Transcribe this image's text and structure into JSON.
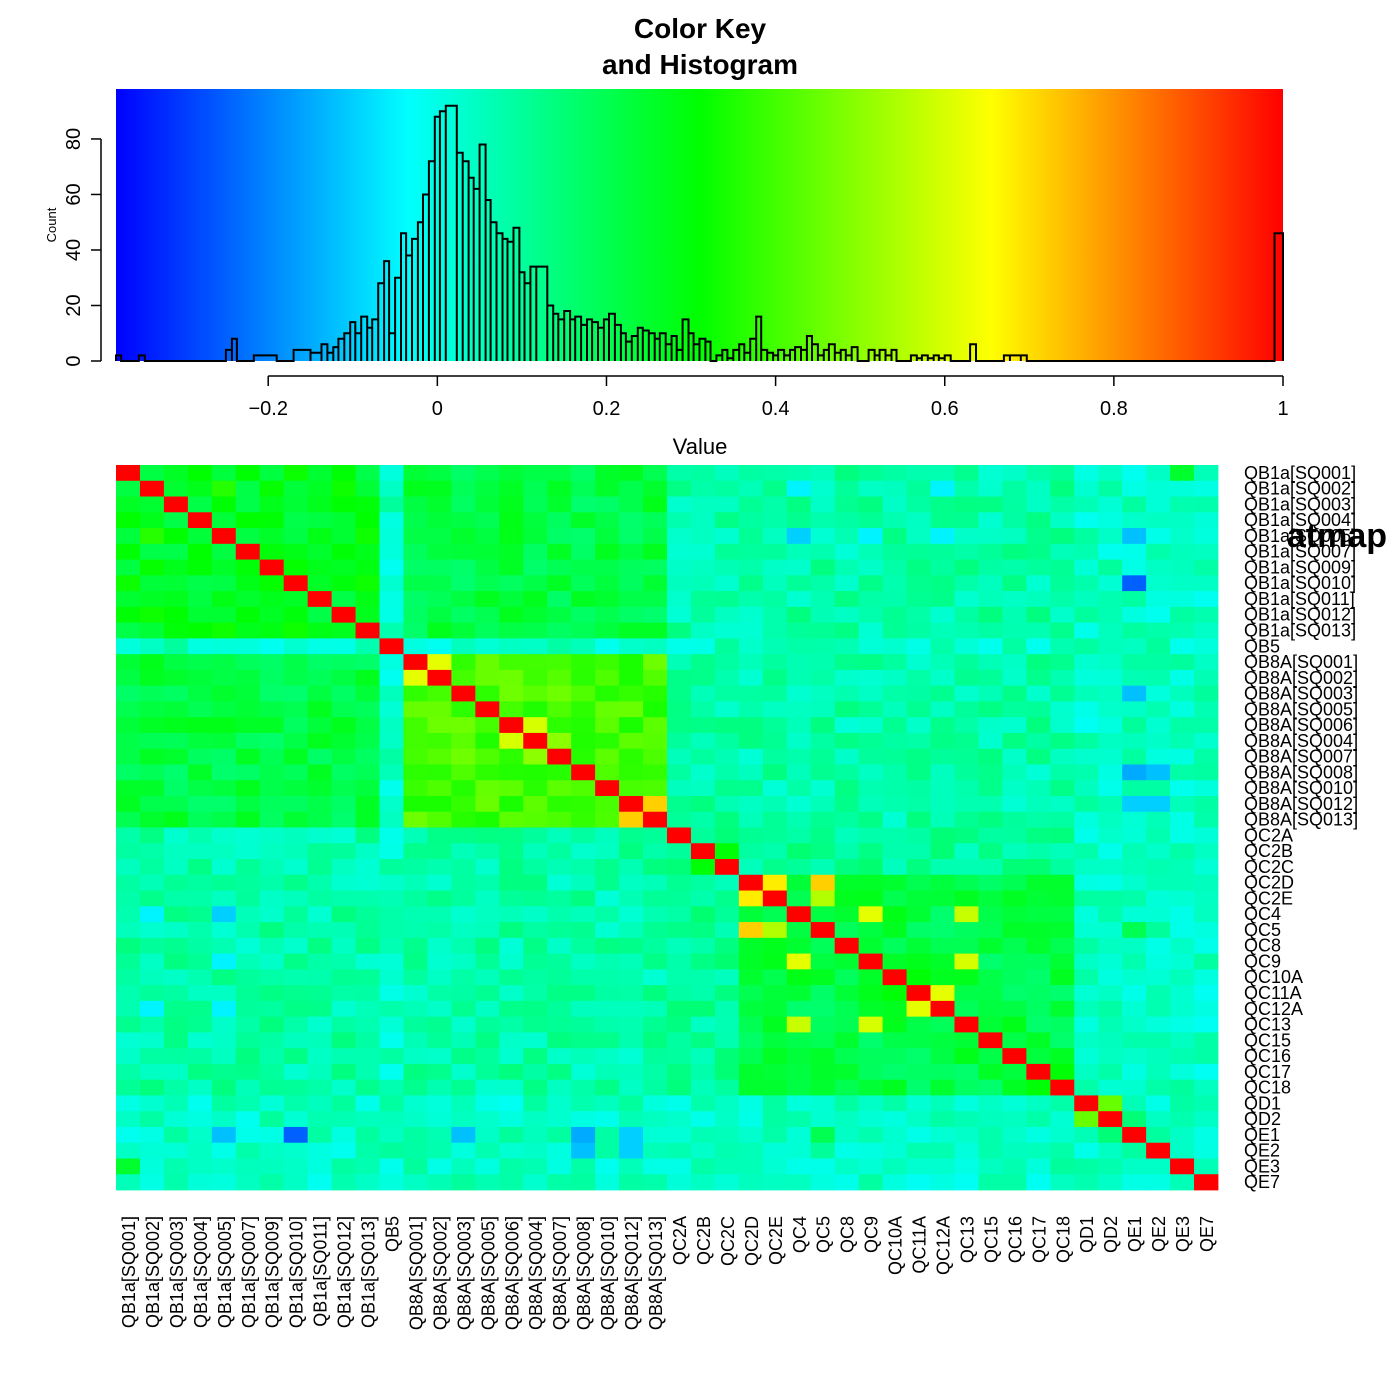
{
  "chart_data": [
    {
      "type": "histogram",
      "title_line1": "Color Key",
      "title_line2": "and Histogram",
      "xlabel": "Value",
      "ylabel": "Count",
      "xlim": [
        -0.38,
        1.0
      ],
      "ylim": [
        0,
        98
      ],
      "x_ticks": [
        -0.2,
        0,
        0.2,
        0.4,
        0.6,
        0.8,
        1
      ],
      "x_tick_labels": [
        "−0.2",
        "0",
        "0.2",
        "0.4",
        "0.6",
        "0.8",
        "1"
      ],
      "y_ticks": [
        0,
        20,
        40,
        60,
        80
      ],
      "y_tick_labels": [
        "0",
        "20",
        "40",
        "60",
        "80"
      ],
      "color_key_stops": [
        "#0000ff",
        "#00ffff",
        "#00ff00",
        "#ffff00",
        "#ff0000"
      ],
      "bins": [
        [
          -0.38,
          -0.374,
          2
        ],
        [
          -0.353,
          -0.346,
          2
        ],
        [
          -0.25,
          -0.243,
          4
        ],
        [
          -0.243,
          -0.237,
          8
        ],
        [
          -0.217,
          -0.19,
          2
        ],
        [
          -0.17,
          -0.15,
          4
        ],
        [
          -0.15,
          -0.137,
          3
        ],
        [
          -0.137,
          -0.13,
          6
        ],
        [
          -0.13,
          -0.123,
          3
        ],
        [
          -0.123,
          -0.117,
          5
        ],
        [
          -0.117,
          -0.11,
          8
        ],
        [
          -0.11,
          -0.103,
          10
        ],
        [
          -0.103,
          -0.097,
          14
        ],
        [
          -0.097,
          -0.09,
          10
        ],
        [
          -0.09,
          -0.083,
          16
        ],
        [
          -0.083,
          -0.077,
          12
        ],
        [
          -0.077,
          -0.07,
          15
        ],
        [
          -0.07,
          -0.063,
          28
        ],
        [
          -0.063,
          -0.057,
          36
        ],
        [
          -0.057,
          -0.05,
          10
        ],
        [
          -0.05,
          -0.043,
          30
        ],
        [
          -0.043,
          -0.037,
          46
        ],
        [
          -0.037,
          -0.03,
          38
        ],
        [
          -0.03,
          -0.023,
          44
        ],
        [
          -0.023,
          -0.017,
          50
        ],
        [
          -0.017,
          -0.01,
          60
        ],
        [
          -0.01,
          -0.003,
          72
        ],
        [
          -0.003,
          0.003,
          88
        ],
        [
          0.003,
          0.01,
          90
        ],
        [
          0.01,
          0.023,
          92
        ],
        [
          0.023,
          0.03,
          75
        ],
        [
          0.03,
          0.037,
          72
        ],
        [
          0.037,
          0.043,
          66
        ],
        [
          0.043,
          0.05,
          62
        ],
        [
          0.05,
          0.057,
          78
        ],
        [
          0.057,
          0.063,
          58
        ],
        [
          0.063,
          0.07,
          50
        ],
        [
          0.07,
          0.077,
          46
        ],
        [
          0.077,
          0.083,
          44
        ],
        [
          0.083,
          0.09,
          43
        ],
        [
          0.09,
          0.097,
          48
        ],
        [
          0.097,
          0.103,
          32
        ],
        [
          0.103,
          0.11,
          28
        ],
        [
          0.11,
          0.117,
          34
        ],
        [
          0.117,
          0.13,
          34
        ],
        [
          0.13,
          0.137,
          20
        ],
        [
          0.137,
          0.143,
          17
        ],
        [
          0.143,
          0.15,
          15
        ],
        [
          0.15,
          0.157,
          18
        ],
        [
          0.157,
          0.163,
          15
        ],
        [
          0.163,
          0.17,
          16
        ],
        [
          0.17,
          0.177,
          13
        ],
        [
          0.177,
          0.183,
          15
        ],
        [
          0.183,
          0.19,
          14
        ],
        [
          0.19,
          0.197,
          12
        ],
        [
          0.197,
          0.203,
          15
        ],
        [
          0.203,
          0.21,
          17
        ],
        [
          0.21,
          0.217,
          13
        ],
        [
          0.217,
          0.223,
          10
        ],
        [
          0.223,
          0.23,
          7
        ],
        [
          0.23,
          0.237,
          9
        ],
        [
          0.237,
          0.243,
          12
        ],
        [
          0.243,
          0.25,
          11
        ],
        [
          0.25,
          0.257,
          10
        ],
        [
          0.257,
          0.263,
          8
        ],
        [
          0.263,
          0.27,
          10
        ],
        [
          0.27,
          0.277,
          6
        ],
        [
          0.277,
          0.283,
          9
        ],
        [
          0.283,
          0.29,
          4
        ],
        [
          0.29,
          0.297,
          15
        ],
        [
          0.297,
          0.303,
          10
        ],
        [
          0.303,
          0.31,
          6
        ],
        [
          0.31,
          0.317,
          8
        ],
        [
          0.317,
          0.323,
          7
        ],
        [
          0.323,
          0.33,
          0
        ],
        [
          0.33,
          0.337,
          2
        ],
        [
          0.337,
          0.343,
          4
        ],
        [
          0.343,
          0.35,
          1
        ],
        [
          0.35,
          0.357,
          4
        ],
        [
          0.357,
          0.363,
          6
        ],
        [
          0.363,
          0.37,
          3
        ],
        [
          0.37,
          0.377,
          8
        ],
        [
          0.377,
          0.383,
          16
        ],
        [
          0.383,
          0.39,
          4
        ],
        [
          0.39,
          0.397,
          3
        ],
        [
          0.397,
          0.403,
          2
        ],
        [
          0.403,
          0.41,
          4
        ],
        [
          0.41,
          0.417,
          2
        ],
        [
          0.417,
          0.423,
          4
        ],
        [
          0.423,
          0.43,
          5
        ],
        [
          0.43,
          0.437,
          4
        ],
        [
          0.437,
          0.443,
          9
        ],
        [
          0.443,
          0.45,
          6
        ],
        [
          0.45,
          0.457,
          2
        ],
        [
          0.457,
          0.463,
          4
        ],
        [
          0.463,
          0.47,
          6
        ],
        [
          0.47,
          0.477,
          3
        ],
        [
          0.477,
          0.483,
          4
        ],
        [
          0.483,
          0.49,
          2
        ],
        [
          0.49,
          0.497,
          5
        ],
        [
          0.497,
          0.51,
          0
        ],
        [
          0.51,
          0.517,
          4
        ],
        [
          0.517,
          0.523,
          2
        ],
        [
          0.523,
          0.53,
          4
        ],
        [
          0.53,
          0.537,
          2
        ],
        [
          0.537,
          0.543,
          4
        ],
        [
          0.543,
          0.56,
          0
        ],
        [
          0.56,
          0.567,
          2
        ],
        [
          0.567,
          0.573,
          1
        ],
        [
          0.573,
          0.58,
          2
        ],
        [
          0.58,
          0.587,
          1
        ],
        [
          0.587,
          0.593,
          2
        ],
        [
          0.593,
          0.6,
          1
        ],
        [
          0.6,
          0.607,
          2
        ],
        [
          0.607,
          0.63,
          0
        ],
        [
          0.63,
          0.637,
          6
        ],
        [
          0.637,
          0.67,
          0
        ],
        [
          0.67,
          0.677,
          2
        ],
        [
          0.677,
          0.69,
          2
        ],
        [
          0.69,
          0.697,
          2
        ],
        [
          0.99,
          1.0,
          46
        ]
      ]
    },
    {
      "type": "heatmap",
      "title": "",
      "overlapping_fragment": "atmap",
      "xlabel": "",
      "ylabel": "",
      "labels": [
        "QB1a[SQ001]",
        "QB1a[SQ002]",
        "QB1a[SQ003]",
        "QB1a[SQ004]",
        "QB1a[SQ005]",
        "QB1a[SQ007]",
        "QB1a[SQ009]",
        "QB1a[SQ010]",
        "QB1a[SQ011]",
        "QB1a[SQ012]",
        "QB1a[SQ013]",
        "QB5",
        "QB8A[SQ001]",
        "QB8A[SQ002]",
        "QB8A[SQ003]",
        "QB8A[SQ005]",
        "QB8A[SQ006]",
        "QB8A[SQ004]",
        "QB8A[SQ007]",
        "QB8A[SQ008]",
        "QB8A[SQ010]",
        "QB8A[SQ012]",
        "QB8A[SQ013]",
        "QC2A",
        "QC2B",
        "QC2C",
        "QC2D",
        "QC2E",
        "QC4",
        "QC5",
        "QC8",
        "QC9",
        "QC10A",
        "QC11A",
        "QC12A",
        "QC13",
        "QC15",
        "QC16",
        "QC17",
        "QC18",
        "QD1",
        "QD2",
        "QE1",
        "QE2",
        "QE3",
        "QE7"
      ],
      "row_labels_right": [
        "QB1a[SQ001]",
        "QB1a[SQ002]",
        "QB1a[SQ003]",
        "QB1a[SQ004]",
        "QB1a[SQ005]",
        "QB1a[SQ007]",
        "QB1a[SQ009]",
        "QB1a[SQ010]",
        "QB1a[SQ011]",
        "QB1a[SQ012]",
        "QB1a[SQ013]",
        "QB5",
        "QB8A[SQ001]",
        "QB8A[SQ002]",
        "QB8A[SQ003]",
        "QB8A[SQ005]",
        "QB8A[SQ006]",
        "QB8A[SQ004]",
        "QB8A[SQ007]",
        "QB8A[SQ008]",
        "QB8A[SQ010]",
        "QB8A[SQ012]",
        "QB8A[SQ013]",
        "QC2A",
        "QC2B",
        "QC2C",
        "QC2D",
        "QC2E",
        "QC4",
        "QC5",
        "QC8",
        "QC9",
        "QC10A",
        "QC11A",
        "QC12A",
        "QC13",
        "QC15",
        "QC16",
        "QC17",
        "QC18",
        "QD1",
        "QD2",
        "QE1",
        "QE2",
        "QE3",
        "QE7"
      ],
      "value_range": [
        -0.38,
        1.0
      ],
      "color_stops": [
        "#0000ff",
        "#00ffff",
        "#00ff00",
        "#ffff00",
        "#ff0000"
      ],
      "groups": {
        "qb1a": [
          0,
          10
        ],
        "qb5": [
          11,
          11
        ],
        "qb8a": [
          12,
          22
        ],
        "qc2": [
          23,
          25
        ],
        "qc_block": [
          26,
          39
        ],
        "qd": [
          40,
          41
        ],
        "qe": [
          42,
          45
        ]
      },
      "group_correlations": {
        "qb1a-qb1a": 0.27,
        "qb1a-qb8a": 0.22,
        "qb8a-qb8a": 0.4,
        "qb1a-qc": 0.08,
        "qb8a-qc": 0.08,
        "qc-qc": 0.1,
        "qc_block-qc_block": 0.22,
        "qd-qd": 0.45,
        "default": 0.04
      },
      "special_cells": [
        [
          1,
          4,
          0.36
        ],
        [
          12,
          13,
          0.62
        ],
        [
          13,
          15,
          0.45
        ],
        [
          16,
          17,
          0.6
        ],
        [
          17,
          18,
          0.5
        ],
        [
          21,
          22,
          0.72
        ],
        [
          24,
          25,
          0.3
        ],
        [
          26,
          27,
          0.68
        ],
        [
          26,
          29,
          0.72
        ],
        [
          27,
          29,
          0.55
        ],
        [
          28,
          31,
          0.62
        ],
        [
          28,
          35,
          0.58
        ],
        [
          31,
          35,
          0.6
        ],
        [
          32,
          33,
          0.3
        ],
        [
          33,
          34,
          0.62
        ],
        [
          38,
          39,
          0.3
        ],
        [
          40,
          41,
          0.45
        ],
        [
          42,
          4,
          -0.12
        ],
        [
          42,
          7,
          -0.25
        ],
        [
          42,
          14,
          -0.12
        ],
        [
          42,
          19,
          -0.15
        ],
        [
          42,
          21,
          -0.1
        ],
        [
          43,
          19,
          -0.12
        ],
        [
          43,
          21,
          -0.1
        ],
        [
          29,
          42,
          0.2
        ],
        [
          44,
          0,
          0.25
        ],
        [
          41,
          42,
          0.15
        ],
        [
          28,
          4,
          -0.1
        ],
        [
          28,
          1,
          -0.05
        ],
        [
          31,
          4,
          -0.05
        ],
        [
          34,
          1,
          -0.05
        ],
        [
          34,
          4,
          -0.05
        ]
      ]
    }
  ]
}
